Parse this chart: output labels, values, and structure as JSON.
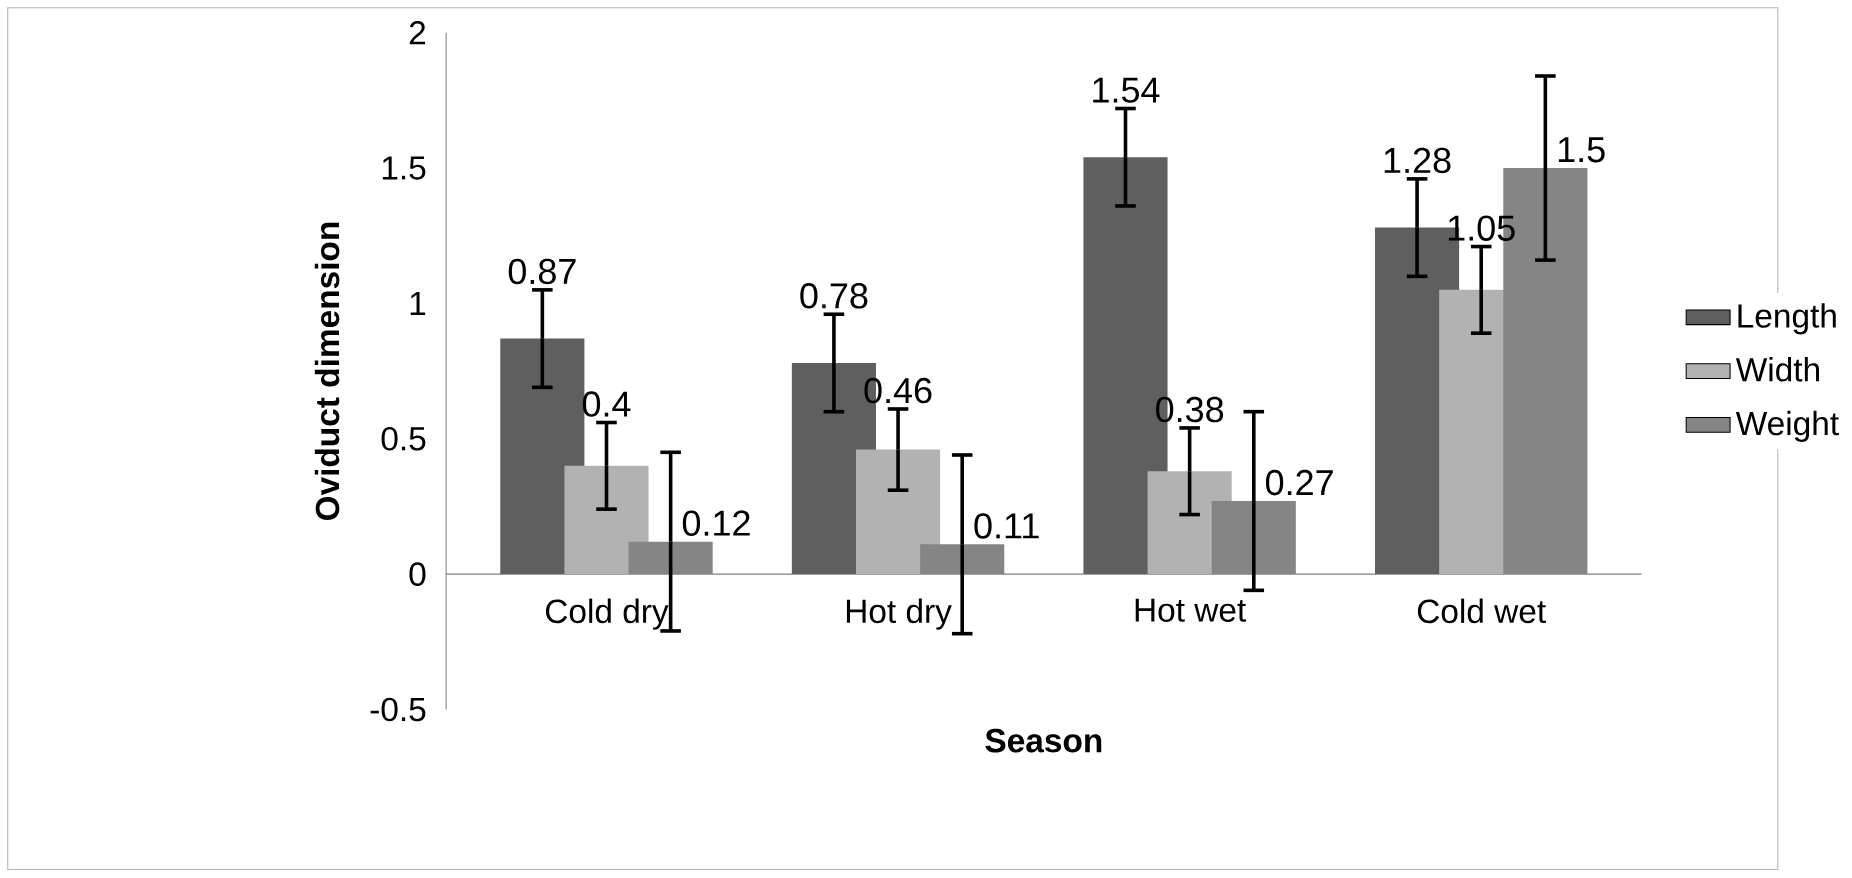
{
  "chart_data": {
    "type": "bar",
    "xlabel": "Season",
    "ylabel": "Oviduct dimension",
    "categories": [
      "Cold dry",
      "Hot dry",
      "Hot wet",
      "Cold wet"
    ],
    "series": [
      {
        "name": "Length",
        "color": "#5f5f5f",
        "values": [
          0.87,
          0.78,
          1.54,
          1.28
        ],
        "errors": [
          0.18,
          0.18,
          0.18,
          0.18
        ]
      },
      {
        "name": "Width",
        "color": "#b2b2b2",
        "values": [
          0.4,
          0.46,
          0.38,
          1.05
        ],
        "errors": [
          0.16,
          0.15,
          0.16,
          0.16
        ]
      },
      {
        "name": "Weight",
        "color": "#858585",
        "values": [
          0.12,
          0.11,
          0.27,
          1.5
        ],
        "errors": [
          0.33,
          0.33,
          0.33,
          0.34
        ]
      }
    ],
    "ylim": [
      -0.5,
      2
    ],
    "yticks": [
      -0.5,
      0,
      0.5,
      1,
      1.5,
      2
    ],
    "data_labels": true,
    "legend": "right",
    "grid": false
  }
}
